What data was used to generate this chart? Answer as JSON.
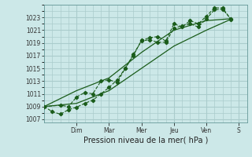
{
  "title": "",
  "xlabel": "Pression niveau de la mer( hPa )",
  "ylabel": "",
  "bg_color": "#cce8e8",
  "grid_color": "#aacccc",
  "line_color": "#1a5c1a",
  "ylim": [
    1006.5,
    1025.0
  ],
  "yticks": [
    1007,
    1009,
    1011,
    1013,
    1015,
    1017,
    1019,
    1021,
    1023
  ],
  "day_labels": [
    "Dim",
    "Mar",
    "Mer",
    "Jeu",
    "Ven",
    "S"
  ],
  "day_positions": [
    2.0,
    4.0,
    6.0,
    8.0,
    10.0,
    12.0
  ],
  "xlim": [
    0,
    12.5
  ],
  "series": [
    {
      "x": [
        0,
        0.5,
        1.0,
        1.5,
        2.0,
        2.5,
        3.0,
        3.5,
        4.0,
        4.5,
        5.0,
        5.5,
        6.0,
        6.5,
        7.0,
        7.5,
        8.0,
        8.5,
        9.0,
        9.5,
        10.0,
        10.5,
        11.0,
        11.5
      ],
      "y": [
        1009.0,
        1008.2,
        1007.8,
        1008.5,
        1008.9,
        1009.5,
        1010.0,
        1011.0,
        1012.0,
        1013.2,
        1015.0,
        1017.2,
        1019.3,
        1019.5,
        1019.1,
        1019.1,
        1021.3,
        1021.7,
        1022.0,
        1021.5,
        1022.8,
        1024.2,
        1024.3,
        1022.8
      ],
      "marker": true,
      "linestyle": "--"
    },
    {
      "x": [
        0,
        1.0,
        1.5,
        2.0,
        2.5,
        3.0,
        3.5,
        4.0,
        4.5,
        5.0,
        5.5,
        6.0,
        6.5,
        7.0,
        7.5,
        8.0,
        8.5,
        9.0,
        9.5,
        10.0,
        10.5,
        11.0,
        11.5
      ],
      "y": [
        1009.0,
        1009.2,
        1009.0,
        1010.5,
        1011.2,
        1011.0,
        1013.0,
        1013.2,
        1012.8,
        1015.0,
        1017.0,
        1019.4,
        1019.8,
        1020.0,
        1019.3,
        1022.0,
        1021.5,
        1022.5,
        1022.0,
        1023.2,
        1024.5,
        1024.5,
        1022.7
      ],
      "marker": true,
      "linestyle": "--"
    },
    {
      "x": [
        0,
        2.0,
        4.0,
        6.0,
        8.0,
        10.0,
        11.5
      ],
      "y": [
        1009.0,
        1009.5,
        1011.5,
        1015.0,
        1018.5,
        1021.0,
        1022.7
      ],
      "marker": false,
      "linestyle": "-"
    },
    {
      "x": [
        0,
        2.0,
        4.0,
        6.0,
        8.0,
        10.0,
        11.5
      ],
      "y": [
        1009.0,
        1011.5,
        1013.5,
        1017.5,
        1021.0,
        1022.5,
        1022.8
      ],
      "marker": false,
      "linestyle": "-"
    }
  ]
}
